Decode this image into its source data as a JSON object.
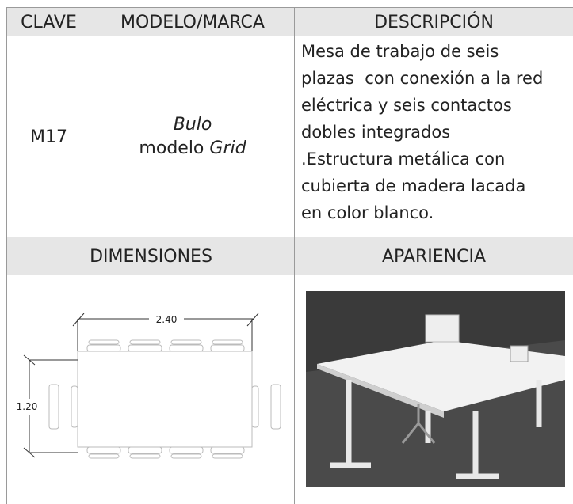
{
  "table": {
    "headers": [
      "CLAVE",
      "MODELO/MARCA",
      "DESCRIPCIÓN"
    ],
    "rows": [
      {
        "key": "M17",
        "brand": "Bulo",
        "model_prefix": "modelo",
        "model_name": "Grid",
        "description": [
          "Mesa de trabajo de seis",
          "plazas  con conexión a la red",
          "eléctrica y seis contactos",
          "dobles integrados",
          ".Estructura metálica con",
          "cubierta de madera lacada",
          "en color blanco."
        ]
      }
    ],
    "section_headers": [
      "DIMENSIONES",
      "APARIENCIA"
    ]
  },
  "drawing": {
    "length": "2.40",
    "width": "1.20"
  }
}
